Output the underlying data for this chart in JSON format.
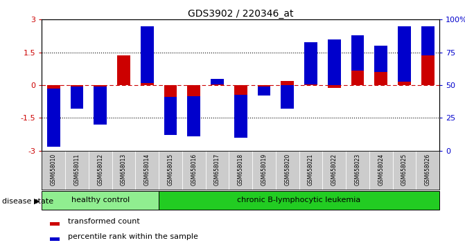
{
  "title": "GDS3902 / 220346_at",
  "samples": [
    "GSM658010",
    "GSM658011",
    "GSM658012",
    "GSM658013",
    "GSM658014",
    "GSM658015",
    "GSM658016",
    "GSM658017",
    "GSM658018",
    "GSM658019",
    "GSM658020",
    "GSM658021",
    "GSM658022",
    "GSM658023",
    "GSM658024",
    "GSM658025",
    "GSM658026"
  ],
  "transformed_count": [
    -0.15,
    -0.05,
    -0.05,
    1.35,
    0.1,
    -0.55,
    -0.5,
    0.02,
    -0.45,
    -0.05,
    0.18,
    0.02,
    -0.12,
    0.65,
    0.6,
    0.15,
    1.35
  ],
  "percentile_rank": [
    3,
    32,
    20,
    68,
    95,
    12,
    11,
    55,
    10,
    42,
    32,
    83,
    85,
    88,
    80,
    95,
    95
  ],
  "ylim_left": [
    -3,
    3
  ],
  "ylim_right": [
    0,
    100
  ],
  "left_ticks": [
    -3,
    -1.5,
    0,
    1.5,
    3
  ],
  "left_labels": [
    "-3",
    "-1.5",
    "0",
    "1.5",
    "3"
  ],
  "right_ticks": [
    0,
    25,
    50,
    75,
    100
  ],
  "right_labels": [
    "0",
    "25",
    "50",
    "75",
    "100%"
  ],
  "bar_color_red": "#cc0000",
  "bar_color_blue": "#0000cc",
  "healthy_color": "#90ee90",
  "leukemia_color": "#22cc22",
  "sample_bg": "#cccccc",
  "healthy_count": 5,
  "total_count": 17,
  "healthy_label": "healthy control",
  "leukemia_label": "chronic B-lymphocytic leukemia",
  "disease_state_label": "disease state",
  "legend_red": "transformed count",
  "legend_blue": "percentile rank within the sample"
}
